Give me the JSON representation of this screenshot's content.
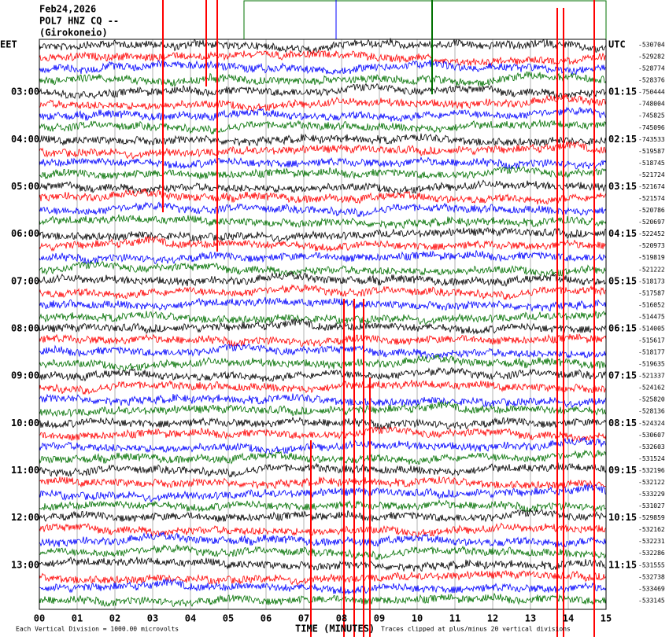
{
  "header": [
    "Feb24,2026",
    "POL7 HNZ CQ --",
    "(Girokoneio)"
  ],
  "left_labels": [
    "EET",
    "03:00",
    "04:00",
    "05:00",
    "06:00",
    "07:00",
    "08:00",
    "09:00",
    "10:00",
    "11:00",
    "12:00",
    "13:00"
  ],
  "right_labels": [
    "UTC",
    "01:15",
    "02:15",
    "03:15",
    "04:15",
    "05:15",
    "06:15",
    "07:15",
    "08:15",
    "09:15",
    "10:15",
    "11:15"
  ],
  "offsets": [
    -530704,
    -529282,
    -528774,
    -528376,
    -750444,
    -748004,
    -745825,
    -745096,
    -743533,
    -519587,
    -518745,
    -521724,
    -521674,
    -521574,
    -520786,
    -520697,
    -522452,
    -520973,
    -519819,
    -521222,
    -518173,
    -517587,
    -516052,
    -514475,
    -514005,
    -515617,
    -518177,
    -519635,
    -521337,
    -524162,
    -525820,
    -528136,
    -524324,
    -530607,
    -532603,
    -531524,
    -532196,
    -532122,
    -533229,
    -531027,
    -529859,
    -532162,
    -532231,
    -532286,
    -531555,
    -532738,
    -533469,
    -533145
  ],
  "x_labels": [
    "00",
    "01",
    "02",
    "03",
    "04",
    "05",
    "06",
    "07",
    "08",
    "09",
    "10",
    "11",
    "12",
    "13",
    "14",
    "15"
  ],
  "x_title": "TIME (MINUTES)",
  "scale_note": "Each Vertical Division = 1000.00 microvolts",
  "clip_note": "Traces clipped at plus/minus 20 vertical divisions",
  "trace_colors": [
    "#000000",
    "#ff0000",
    "#0000ff",
    "#007000"
  ]
}
